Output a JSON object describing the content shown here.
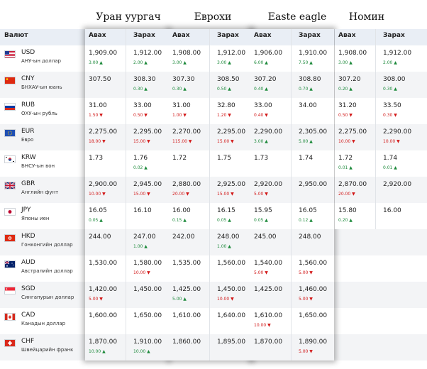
{
  "banks": [
    "Уран уургач",
    "Еврохи",
    "Easte eagle",
    "Номин"
  ],
  "column_headers": {
    "currency": "Валют",
    "buy": "Авах",
    "sell": "Зарах"
  },
  "colors": {
    "up": "#1e8a3c",
    "down": "#d21919",
    "header_bg": "#e9eef5",
    "row_alt": "#f3f4f6"
  },
  "rows": [
    {
      "code": "USD",
      "name": "АНУ-ын доллар",
      "flag": "us",
      "b": [
        {
          "buy": "1,909.00",
          "bc": "3.00",
          "bd": "up",
          "sell": "1,912.00",
          "sc": "2.00",
          "sd": "up"
        },
        {
          "buy": "1,908.00",
          "bc": "3.00",
          "bd": "up",
          "sell": "1,912.00",
          "sc": "3.00",
          "sd": "up"
        },
        {
          "buy": "1,906.00",
          "bc": "6.00",
          "bd": "up",
          "sell": "1,910.00",
          "sc": "7.50",
          "sd": "up"
        },
        {
          "buy": "1,908.00",
          "bc": "3.00",
          "bd": "up",
          "sell": "1,912.00",
          "sc": "2.00",
          "sd": "up"
        }
      ]
    },
    {
      "code": "CNY",
      "name": "БНХАУ-ын юань",
      "flag": "cn",
      "b": [
        {
          "buy": "307.50",
          "bc": "",
          "bd": "",
          "sell": "308.30",
          "sc": "0.30",
          "sd": "up"
        },
        {
          "buy": "307.30",
          "bc": "0.30",
          "bd": "up",
          "sell": "308.50",
          "sc": "0.50",
          "sd": "up"
        },
        {
          "buy": "307.20",
          "bc": "0.40",
          "bd": "up",
          "sell": "308.80",
          "sc": "0.70",
          "sd": "up"
        },
        {
          "buy": "307.20",
          "bc": "0.20",
          "bd": "up",
          "sell": "308.00",
          "sc": "0.30",
          "sd": "up"
        }
      ]
    },
    {
      "code": "RUB",
      "name": "ОХУ-ын рубль",
      "flag": "ru",
      "b": [
        {
          "buy": "31.00",
          "bc": "1.50",
          "bd": "down",
          "sell": "33.00",
          "sc": "0.50",
          "sd": "down"
        },
        {
          "buy": "31.00",
          "bc": "1.00",
          "bd": "down",
          "sell": "32.80",
          "sc": "1.20",
          "sd": "down"
        },
        {
          "buy": "33.00",
          "bc": "0.40",
          "bd": "down",
          "sell": "34.00",
          "sc": "",
          "sd": ""
        },
        {
          "buy": "31.20",
          "bc": "0.50",
          "bd": "down",
          "sell": "33.50",
          "sc": "0.30",
          "sd": "down"
        }
      ]
    },
    {
      "code": "EUR",
      "name": "Евро",
      "flag": "eu",
      "b": [
        {
          "buy": "2,275.00",
          "bc": "18.00",
          "bd": "down",
          "sell": "2,295.00",
          "sc": "15.00",
          "sd": "down"
        },
        {
          "buy": "2,270.00",
          "bc": "115.00",
          "bd": "down",
          "sell": "2,295.00",
          "sc": "15.00",
          "sd": "down"
        },
        {
          "buy": "2,290.00",
          "bc": "3.00",
          "bd": "up",
          "sell": "2,305.00",
          "sc": "5.00",
          "sd": "up"
        },
        {
          "buy": "2,275.00",
          "bc": "10.00",
          "bd": "down",
          "sell": "2,290.00",
          "sc": "10.00",
          "sd": "down"
        }
      ]
    },
    {
      "code": "KRW",
      "name": "БНСУ-ын вон",
      "flag": "kr",
      "b": [
        {
          "buy": "1.73",
          "bc": "",
          "bd": "",
          "sell": "1.76",
          "sc": "0.02",
          "sd": "up"
        },
        {
          "buy": "1.72",
          "bc": "",
          "bd": "",
          "sell": "1.75",
          "sc": "",
          "sd": ""
        },
        {
          "buy": "1.73",
          "bc": "",
          "bd": "",
          "sell": "1.74",
          "sc": "",
          "sd": ""
        },
        {
          "buy": "1.72",
          "bc": "0.01",
          "bd": "up",
          "sell": "1.74",
          "sc": "0.01",
          "sd": "up"
        }
      ]
    },
    {
      "code": "GBR",
      "name": "Английн фунт",
      "flag": "gb",
      "b": [
        {
          "buy": "2,900.00",
          "bc": "10.00",
          "bd": "down",
          "sell": "2,945.00",
          "sc": "15.00",
          "sd": "down"
        },
        {
          "buy": "2,880.00",
          "bc": "20.00",
          "bd": "down",
          "sell": "2,925.00",
          "sc": "15.00",
          "sd": "down"
        },
        {
          "buy": "2,920.00",
          "bc": "5.00",
          "bd": "down",
          "sell": "2,950.00",
          "sc": "",
          "sd": ""
        },
        {
          "buy": "2,870.00",
          "bc": "20.00",
          "bd": "down",
          "sell": "2,920.00",
          "sc": "",
          "sd": ""
        }
      ]
    },
    {
      "code": "JPY",
      "name": "Японы иен",
      "flag": "jp",
      "b": [
        {
          "buy": "16.05",
          "bc": "0.05",
          "bd": "up",
          "sell": "16.10",
          "sc": "",
          "sd": ""
        },
        {
          "buy": "16.00",
          "bc": "0.15",
          "bd": "up",
          "sell": "16.15",
          "sc": "0.05",
          "sd": "up"
        },
        {
          "buy": "15.95",
          "bc": "0.05",
          "bd": "up",
          "sell": "16.05",
          "sc": "0.12",
          "sd": "up"
        },
        {
          "buy": "15.80",
          "bc": "0.20",
          "bd": "up",
          "sell": "16.00",
          "sc": "",
          "sd": ""
        }
      ]
    },
    {
      "code": "HKD",
      "name": "Гонконгийн доллар",
      "flag": "hk",
      "b": [
        {
          "buy": "244.00",
          "bc": "",
          "bd": "",
          "sell": "247.00",
          "sc": "1.00",
          "sd": "up"
        },
        {
          "buy": "242.00",
          "bc": "",
          "bd": "",
          "sell": "248.00",
          "sc": "1.00",
          "sd": "up"
        },
        {
          "buy": "245.00",
          "bc": "",
          "bd": "",
          "sell": "248.00",
          "sc": "",
          "sd": ""
        },
        null
      ]
    },
    {
      "code": "AUD",
      "name": "Австралийн доллар",
      "flag": "au",
      "b": [
        {
          "buy": "1,530.00",
          "bc": "",
          "bd": "",
          "sell": "1,580.00",
          "sc": "10.00",
          "sd": "down"
        },
        {
          "buy": "1,535.00",
          "bc": "",
          "bd": "",
          "sell": "1,560.00",
          "sc": "",
          "sd": ""
        },
        {
          "buy": "1,540.00",
          "bc": "5.00",
          "bd": "down",
          "sell": "1,560.00",
          "sc": "5.00",
          "sd": "down"
        },
        null
      ]
    },
    {
      "code": "SGD",
      "name": "Сингапурын доллар",
      "flag": "sg",
      "b": [
        {
          "buy": "1,420.00",
          "bc": "5.00",
          "bd": "down",
          "sell": "1,450.00",
          "sc": "",
          "sd": ""
        },
        {
          "buy": "1,425.00",
          "bc": "5.00",
          "bd": "up",
          "sell": "1,450.00",
          "sc": "10.00",
          "sd": "down"
        },
        {
          "buy": "1,425.00",
          "bc": "",
          "bd": "",
          "sell": "1,460.00",
          "sc": "5.00",
          "sd": "down"
        },
        null
      ]
    },
    {
      "code": "CAD",
      "name": "Канадын доллар",
      "flag": "ca",
      "b": [
        {
          "buy": "1,600.00",
          "bc": "",
          "bd": "",
          "sell": "1,650.00",
          "sc": "",
          "sd": ""
        },
        {
          "buy": "1,610.00",
          "bc": "",
          "bd": "",
          "sell": "1,640.00",
          "sc": "",
          "sd": ""
        },
        {
          "buy": "1,610.00",
          "bc": "10.00",
          "bd": "down",
          "sell": "1,650.00",
          "sc": "",
          "sd": ""
        },
        null
      ]
    },
    {
      "code": "CHF",
      "name": "Швейцарийн франк",
      "flag": "ch",
      "b": [
        {
          "buy": "1,870.00",
          "bc": "10.00",
          "bd": "up",
          "sell": "1,910.00",
          "sc": "10.00",
          "sd": "up"
        },
        {
          "buy": "1,860.00",
          "bc": "",
          "bd": "",
          "sell": "1,895.00",
          "sc": "",
          "sd": ""
        },
        {
          "buy": "1,870.00",
          "bc": "",
          "bd": "",
          "sell": "1,890.00",
          "sc": "5.00",
          "sd": "down"
        },
        null
      ]
    }
  ]
}
